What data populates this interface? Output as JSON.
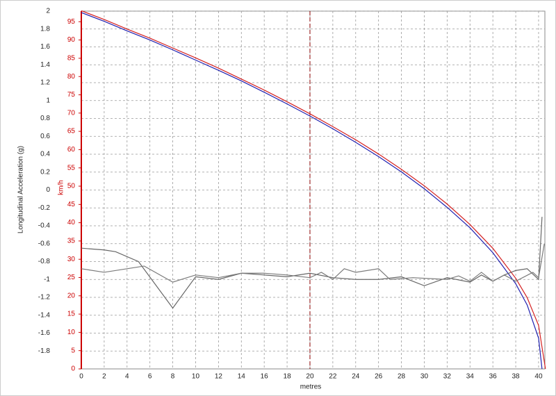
{
  "chart_data": {
    "type": "line",
    "y_label": "Longitudinal Acceleration (g)",
    "y2_label": "km/h",
    "x_label": "metres",
    "xlim": [
      0,
      40.55
    ],
    "xticks": [
      0,
      2,
      4,
      6,
      8,
      10,
      12,
      14,
      16,
      18,
      20,
      22,
      24,
      26,
      28,
      30,
      32,
      34,
      36,
      38,
      40
    ],
    "ylim": [
      -2,
      2
    ],
    "yticks": [
      -1.8,
      -1.6,
      -1.4,
      -1.2,
      -1,
      -0.8,
      -0.6,
      -0.4,
      -0.2,
      0,
      0.2,
      0.4,
      0.6,
      0.8,
      1,
      1.2,
      1.4,
      1.6,
      1.8,
      2
    ],
    "y2lim": [
      0,
      97.9
    ],
    "y2ticks": [
      0,
      5,
      10,
      15,
      20,
      25,
      30,
      35,
      40,
      45,
      50,
      55,
      60,
      65,
      70,
      75,
      80,
      85,
      90,
      95
    ],
    "y2_color": "#cc0000",
    "grid": true,
    "cursor_x": 20,
    "cursor_color": "#8b0000",
    "series": [
      {
        "color": "#d42020",
        "axis": "y2",
        "x": [
          0,
          2,
          4,
          6,
          8,
          10,
          12,
          14,
          16,
          18,
          20,
          22,
          24,
          26,
          28,
          30,
          32,
          34,
          36,
          38,
          39,
          40,
          40.6
        ],
        "values": [
          98,
          95.6,
          93.0,
          90.5,
          87.8,
          85.1,
          82.3,
          79.3,
          76.3,
          73.1,
          69.8,
          66.3,
          62.7,
          58.8,
          54.6,
          50.1,
          45.1,
          39.5,
          33.0,
          24.8,
          19.5,
          11.9,
          0
        ]
      },
      {
        "color": "#2020b0",
        "axis": "y2",
        "x": [
          0,
          2,
          4,
          6,
          8,
          10,
          12,
          14,
          16,
          18,
          20,
          22,
          24,
          26,
          28,
          30,
          32,
          34,
          36,
          38,
          39,
          40,
          40.3
        ],
        "values": [
          97.5,
          95.1,
          92.5,
          90.0,
          87.3,
          84.5,
          81.7,
          78.8,
          75.7,
          72.5,
          69.2,
          65.7,
          62.0,
          58.1,
          53.9,
          49.3,
          44.2,
          38.6,
          31.8,
          23.3,
          17.5,
          8.4,
          0
        ]
      },
      {
        "color": "#666666",
        "axis": "y",
        "x": [
          0,
          2,
          3,
          5,
          8,
          10,
          12,
          14,
          16,
          18,
          20,
          22,
          24,
          26,
          28,
          30,
          32,
          34,
          35,
          36,
          37,
          38,
          39,
          40,
          40.3
        ],
        "values": [
          -0.65,
          -0.67,
          -0.69,
          -0.8,
          -1.32,
          -0.97,
          -1.0,
          -0.93,
          -0.95,
          -0.97,
          -0.93,
          -0.98,
          -1.0,
          -1.0,
          -0.97,
          -1.07,
          -0.98,
          -1.03,
          -0.95,
          -1.02,
          -0.95,
          -0.9,
          -0.88,
          -1.0,
          -0.3
        ]
      },
      {
        "color": "#7a7a7a",
        "axis": "y",
        "x": [
          0,
          2,
          4,
          5.5,
          8,
          10,
          12,
          14,
          16,
          18,
          20,
          21,
          22,
          23,
          24,
          26,
          27,
          29,
          32,
          33,
          34,
          35,
          36,
          37,
          38,
          39.5,
          40,
          40.5
        ],
        "values": [
          -0.88,
          -0.92,
          -0.88,
          -0.85,
          -1.03,
          -0.95,
          -0.98,
          -0.93,
          -0.93,
          -0.95,
          -0.98,
          -0.92,
          -1.0,
          -0.88,
          -0.92,
          -0.88,
          -1.0,
          -0.98,
          -1.0,
          -0.96,
          -1.02,
          -0.92,
          -1.02,
          -0.95,
          -1.02,
          -0.92,
          -0.98,
          -0.6
        ]
      }
    ]
  }
}
